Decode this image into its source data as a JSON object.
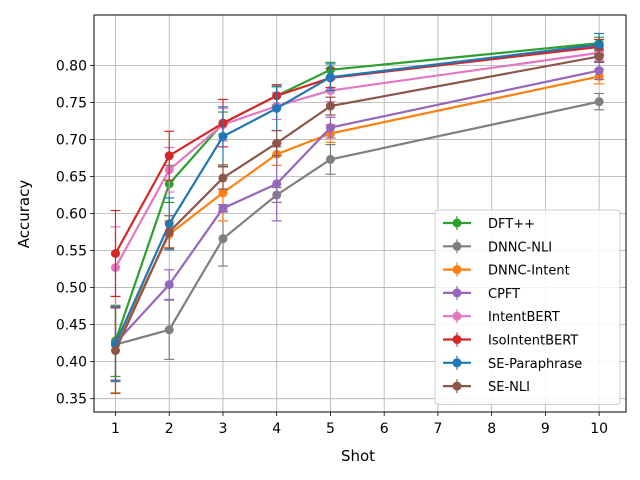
{
  "chart_data": {
    "type": "line",
    "title": "",
    "xlabel": "Shot",
    "ylabel": "Accuracy",
    "xlim": [
      0.6,
      10.5
    ],
    "ylim": [
      0.332,
      0.868
    ],
    "xticks": [
      1,
      2,
      3,
      4,
      5,
      6,
      7,
      8,
      9,
      10
    ],
    "yticks": [
      0.35,
      0.4,
      0.45,
      0.5,
      0.55,
      0.6,
      0.65,
      0.7,
      0.75,
      0.8
    ],
    "grid": true,
    "legend_position": "lower-right",
    "series": [
      {
        "name": "DFT++",
        "color": "#2ca02c",
        "x": [
          1,
          2,
          3,
          4,
          5,
          10
        ],
        "values": [
          0.428,
          0.64,
          0.722,
          0.759,
          0.794,
          0.83
        ],
        "errors": [
          0.048,
          0.025,
          0.015,
          0.012,
          0.01,
          0.008
        ]
      },
      {
        "name": "DNNC-NLI",
        "color": "#7f7f7f",
        "x": [
          1,
          2,
          3,
          4,
          5,
          10
        ],
        "values": [
          0.423,
          0.443,
          0.566,
          0.625,
          0.673,
          0.751
        ],
        "errors": [
          0.05,
          0.04,
          0.037,
          0.01,
          0.02,
          0.011
        ]
      },
      {
        "name": "DNNC-Intent",
        "color": "#ff7f0e",
        "x": [
          1,
          2,
          3,
          4,
          5,
          10
        ],
        "values": [
          0.423,
          0.572,
          0.628,
          0.68,
          0.708,
          0.785
        ],
        "errors": [
          0.065,
          0.018,
          0.038,
          0.015,
          0.012,
          0.01
        ]
      },
      {
        "name": "CPFT",
        "color": "#9467bd",
        "x": [
          1,
          2,
          3,
          4,
          5,
          10
        ],
        "values": [
          0.425,
          0.504,
          0.607,
          0.64,
          0.716,
          0.793
        ],
        "errors": [
          0.05,
          0.02,
          0.005,
          0.05,
          0.014,
          0.012
        ]
      },
      {
        "name": "IntentBERT",
        "color": "#e377c2",
        "x": [
          1,
          2,
          3,
          4,
          5,
          10
        ],
        "values": [
          0.527,
          0.659,
          0.72,
          0.745,
          0.766,
          0.817
        ],
        "errors": [
          0.055,
          0.03,
          0.022,
          0.018,
          0.015,
          0.01
        ]
      },
      {
        "name": "IsoIntentBERT",
        "color": "#d62728",
        "x": [
          1,
          2,
          3,
          4,
          5,
          10
        ],
        "values": [
          0.546,
          0.678,
          0.722,
          0.759,
          0.783,
          0.825
        ],
        "errors": [
          0.058,
          0.033,
          0.032,
          0.015,
          0.013,
          0.01
        ]
      },
      {
        "name": "SE-Paraphrase",
        "color": "#1f77b4",
        "x": [
          1,
          2,
          3,
          4,
          5,
          10
        ],
        "values": [
          0.424,
          0.586,
          0.704,
          0.742,
          0.784,
          0.828
        ],
        "errors": [
          0.05,
          0.035,
          0.04,
          0.03,
          0.018,
          0.015
        ]
      },
      {
        "name": "SE-NLI",
        "color": "#8c564b",
        "x": [
          1,
          2,
          3,
          4,
          5,
          10
        ],
        "values": [
          0.415,
          0.575,
          0.648,
          0.695,
          0.745,
          0.812
        ],
        "errors": [
          0.058,
          0.022,
          0.015,
          0.017,
          0.012,
          0.008
        ]
      }
    ]
  }
}
